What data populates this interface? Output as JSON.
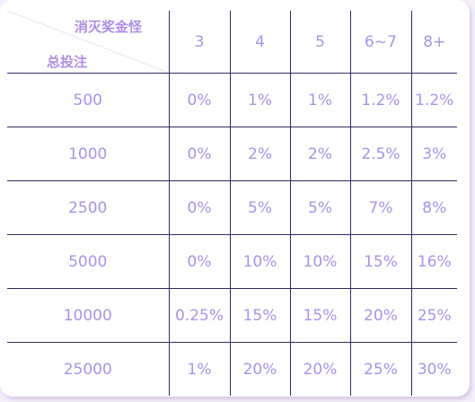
{
  "table": {
    "corner_top_label": "消灭奖金怪",
    "corner_bottom_label": "总投注",
    "columns": [
      "3",
      "4",
      "5",
      "6~7",
      "8+"
    ],
    "rows": [
      {
        "bet": "500",
        "values": [
          "0%",
          "1%",
          "1%",
          "1.2%",
          "1.2%"
        ]
      },
      {
        "bet": "1000",
        "values": [
          "0%",
          "2%",
          "2%",
          "2.5%",
          "3%"
        ]
      },
      {
        "bet": "2500",
        "values": [
          "0%",
          "5%",
          "5%",
          "7%",
          "8%"
        ]
      },
      {
        "bet": "5000",
        "values": [
          "0%",
          "10%",
          "10%",
          "15%",
          "16%"
        ]
      },
      {
        "bet": "10000",
        "values": [
          "0.25%",
          "15%",
          "15%",
          "20%",
          "25%"
        ]
      },
      {
        "bet": "25000",
        "values": [
          "1%",
          "20%",
          "20%",
          "25%",
          "30%"
        ]
      }
    ]
  },
  "colors": {
    "text": "#a892ea",
    "header_text": "#ae8de8",
    "grid_line": "#2b2b5e",
    "panel_bg": "#ffffff",
    "page_bg": "#f3effa"
  }
}
